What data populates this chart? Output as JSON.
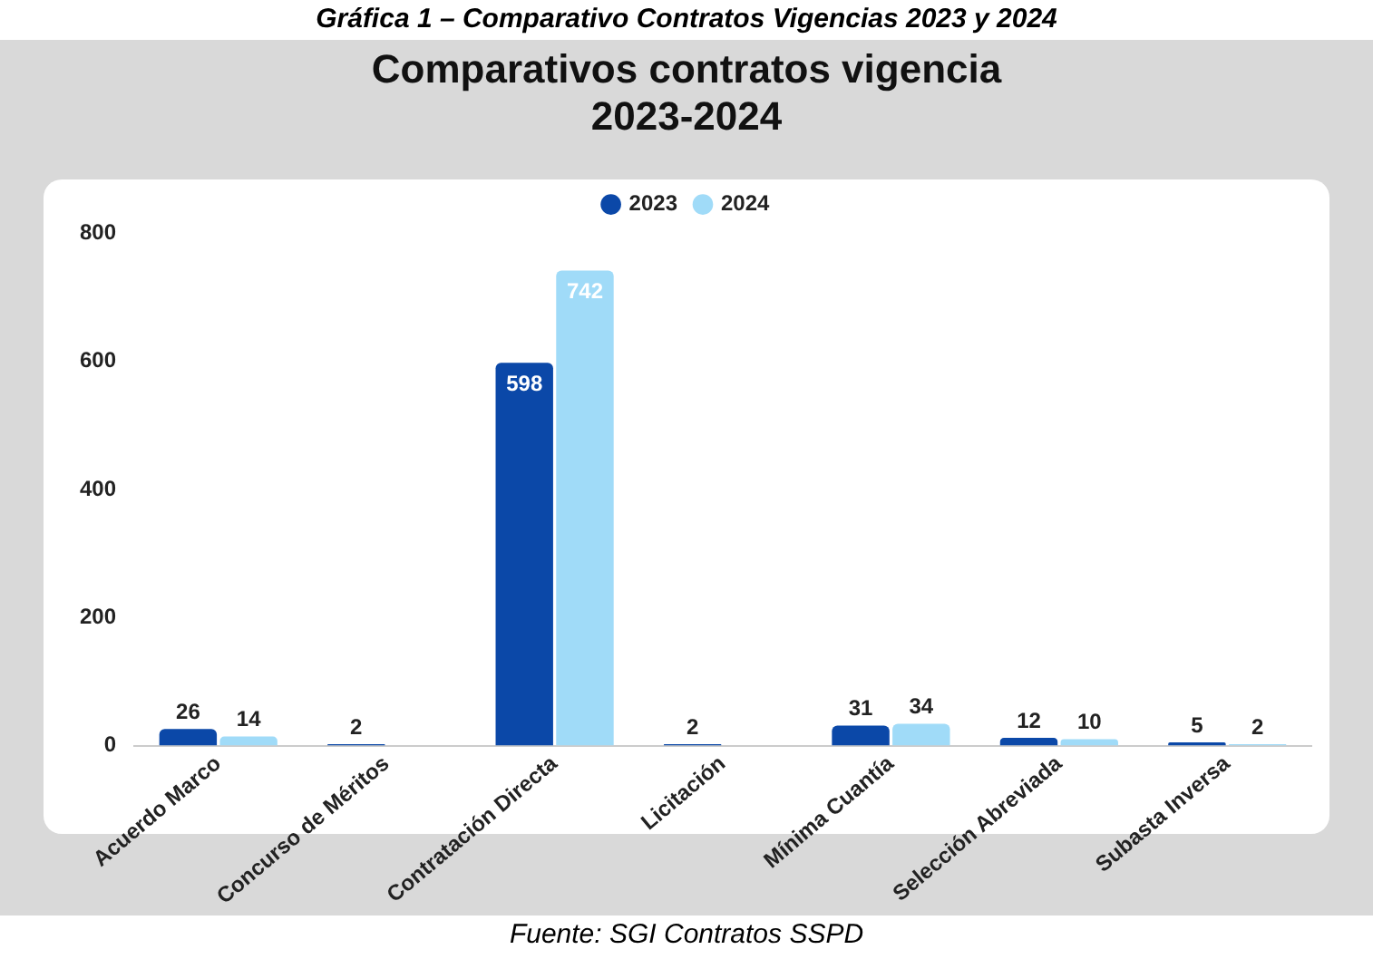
{
  "chart_data": {
    "type": "bar",
    "title": "Comparativos contratos vigencia 2023-2024",
    "annotations": [
      "Gráfica 1 – Comparativo Contratos Vigencias 2023 y 2024",
      "Fuente: SGI Contratos SSPD"
    ],
    "categories": [
      "Acuerdo Marco",
      "Concurso de Méritos",
      "Contratación Directa",
      "Licitación",
      "Mínima Cuantía",
      "Selección Abreviada",
      "Subasta Inversa"
    ],
    "series": [
      {
        "name": "2023",
        "color": "#0b48a8",
        "values": [
          26,
          2,
          598,
          2,
          31,
          12,
          5
        ]
      },
      {
        "name": "2024",
        "color": "#a0dbf8",
        "values": [
          14,
          null,
          742,
          null,
          34,
          10,
          2
        ]
      }
    ],
    "ylim": [
      0,
      800
    ],
    "yticks": [
      0,
      200,
      400,
      600,
      800
    ],
    "grid": false,
    "legend": "top",
    "data_labels": true
  }
}
